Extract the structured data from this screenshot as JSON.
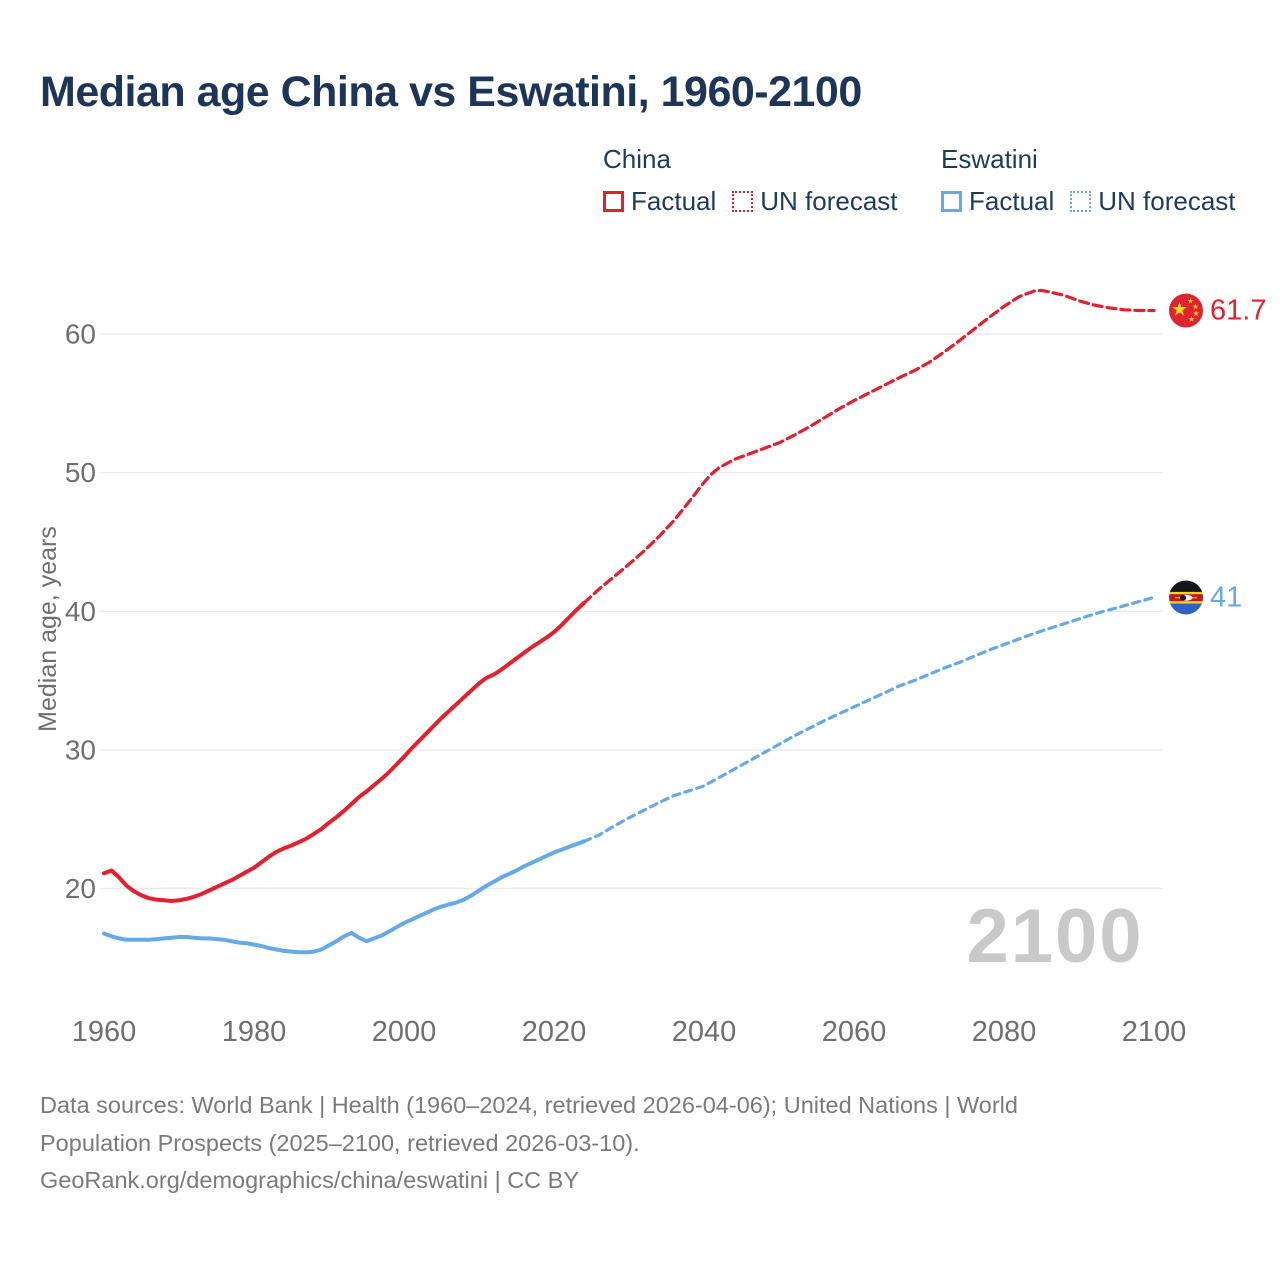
{
  "page": {
    "title": "Median age China vs Eswatini, 1960-2100"
  },
  "legend": {
    "groups": [
      {
        "label": "China",
        "color": "#e5202e",
        "items": [
          {
            "label": "Factual",
            "style": "solid"
          },
          {
            "label": "UN forecast",
            "style": "dotted"
          }
        ]
      },
      {
        "label": "Eswatini",
        "color": "#66a9e8",
        "items": [
          {
            "label": "Factual",
            "style": "solid"
          },
          {
            "label": "UN forecast",
            "style": "dotted"
          }
        ]
      }
    ]
  },
  "chart_data": {
    "type": "line",
    "title": "Median age China vs Eswatini, 1960-2100",
    "xlabel": "",
    "ylabel": "Median age, years",
    "x_ticks": [
      1960,
      1980,
      2000,
      2020,
      2040,
      2060,
      2080,
      2100
    ],
    "y_ticks": [
      20,
      30,
      40,
      50,
      60
    ],
    "xlim": [
      1960,
      2100
    ],
    "ylim": [
      15,
      64
    ],
    "grid": "horizontal",
    "legend_position": "top",
    "watermark": "2100",
    "series": [
      {
        "name": "China — Factual",
        "country": "China",
        "color": "#e5202e",
        "style": "solid",
        "points": [
          [
            1960,
            21.1
          ],
          [
            1961,
            21.3
          ],
          [
            1962,
            20.8
          ],
          [
            1963,
            20.2
          ],
          [
            1964,
            19.8
          ],
          [
            1965,
            19.5
          ],
          [
            1966,
            19.3
          ],
          [
            1967,
            19.2
          ],
          [
            1968,
            19.15
          ],
          [
            1969,
            19.1
          ],
          [
            1970,
            19.15
          ],
          [
            1971,
            19.25
          ],
          [
            1972,
            19.4
          ],
          [
            1973,
            19.6
          ],
          [
            1974,
            19.85
          ],
          [
            1975,
            20.1
          ],
          [
            1976,
            20.35
          ],
          [
            1977,
            20.6
          ],
          [
            1978,
            20.9
          ],
          [
            1979,
            21.2
          ],
          [
            1980,
            21.5
          ],
          [
            1981,
            21.9
          ],
          [
            1982,
            22.3
          ],
          [
            1983,
            22.65
          ],
          [
            1984,
            22.9
          ],
          [
            1985,
            23.1
          ],
          [
            1986,
            23.35
          ],
          [
            1987,
            23.6
          ],
          [
            1988,
            23.95
          ],
          [
            1989,
            24.3
          ],
          [
            1990,
            24.75
          ],
          [
            1991,
            25.15
          ],
          [
            1992,
            25.6
          ],
          [
            1993,
            26.1
          ],
          [
            1994,
            26.6
          ],
          [
            1995,
            27.0
          ],
          [
            1996,
            27.45
          ],
          [
            1997,
            27.9
          ],
          [
            1998,
            28.4
          ],
          [
            1999,
            28.95
          ],
          [
            2000,
            29.5
          ],
          [
            2001,
            30.1
          ],
          [
            2002,
            30.65
          ],
          [
            2003,
            31.2
          ],
          [
            2004,
            31.75
          ],
          [
            2005,
            32.3
          ],
          [
            2006,
            32.8
          ],
          [
            2007,
            33.3
          ],
          [
            2008,
            33.8
          ],
          [
            2009,
            34.3
          ],
          [
            2010,
            34.8
          ],
          [
            2011,
            35.2
          ],
          [
            2012,
            35.45
          ],
          [
            2013,
            35.8
          ],
          [
            2014,
            36.2
          ],
          [
            2015,
            36.6
          ],
          [
            2016,
            37.0
          ],
          [
            2017,
            37.4
          ],
          [
            2018,
            37.75
          ],
          [
            2019,
            38.1
          ],
          [
            2020,
            38.5
          ],
          [
            2021,
            39.0
          ],
          [
            2022,
            39.55
          ],
          [
            2023,
            40.1
          ],
          [
            2024,
            40.6
          ]
        ]
      },
      {
        "name": "China — UN forecast",
        "country": "China",
        "color": "#e5202e",
        "style": "dashed",
        "points": [
          [
            2024,
            40.6
          ],
          [
            2025,
            41.1
          ],
          [
            2026,
            41.6
          ],
          [
            2028,
            42.5
          ],
          [
            2030,
            43.4
          ],
          [
            2032,
            44.35
          ],
          [
            2034,
            45.4
          ],
          [
            2036,
            46.55
          ],
          [
            2038,
            47.9
          ],
          [
            2040,
            49.3
          ],
          [
            2041,
            49.9
          ],
          [
            2042,
            50.35
          ],
          [
            2044,
            50.95
          ],
          [
            2046,
            51.35
          ],
          [
            2048,
            51.75
          ],
          [
            2050,
            52.15
          ],
          [
            2052,
            52.7
          ],
          [
            2054,
            53.3
          ],
          [
            2056,
            53.95
          ],
          [
            2058,
            54.6
          ],
          [
            2060,
            55.2
          ],
          [
            2062,
            55.75
          ],
          [
            2064,
            56.3
          ],
          [
            2066,
            56.85
          ],
          [
            2068,
            57.35
          ],
          [
            2070,
            57.95
          ],
          [
            2072,
            58.7
          ],
          [
            2074,
            59.5
          ],
          [
            2076,
            60.35
          ],
          [
            2078,
            61.2
          ],
          [
            2080,
            62.0
          ],
          [
            2082,
            62.7
          ],
          [
            2084,
            63.1
          ],
          [
            2085,
            63.15
          ],
          [
            2086,
            63.05
          ],
          [
            2088,
            62.8
          ],
          [
            2090,
            62.4
          ],
          [
            2092,
            62.1
          ],
          [
            2094,
            61.9
          ],
          [
            2096,
            61.75
          ],
          [
            2098,
            61.7
          ],
          [
            2100,
            61.7
          ]
        ]
      },
      {
        "name": "Eswatini — Factual",
        "country": "Eswatini",
        "color": "#66a9e8",
        "style": "solid",
        "points": [
          [
            1960,
            16.75
          ],
          [
            1961,
            16.55
          ],
          [
            1962,
            16.4
          ],
          [
            1963,
            16.3
          ],
          [
            1964,
            16.3
          ],
          [
            1965,
            16.3
          ],
          [
            1966,
            16.3
          ],
          [
            1967,
            16.35
          ],
          [
            1968,
            16.4
          ],
          [
            1969,
            16.45
          ],
          [
            1970,
            16.5
          ],
          [
            1971,
            16.5
          ],
          [
            1972,
            16.45
          ],
          [
            1973,
            16.4
          ],
          [
            1974,
            16.4
          ],
          [
            1975,
            16.35
          ],
          [
            1976,
            16.3
          ],
          [
            1977,
            16.2
          ],
          [
            1978,
            16.1
          ],
          [
            1979,
            16.05
          ],
          [
            1980,
            15.95
          ],
          [
            1981,
            15.85
          ],
          [
            1982,
            15.7
          ],
          [
            1983,
            15.6
          ],
          [
            1984,
            15.5
          ],
          [
            1985,
            15.45
          ],
          [
            1986,
            15.4
          ],
          [
            1987,
            15.4
          ],
          [
            1988,
            15.45
          ],
          [
            1989,
            15.6
          ],
          [
            1990,
            15.9
          ],
          [
            1991,
            16.2
          ],
          [
            1992,
            16.55
          ],
          [
            1993,
            16.8
          ],
          [
            1994,
            16.45
          ],
          [
            1995,
            16.2
          ],
          [
            1996,
            16.4
          ],
          [
            1997,
            16.6
          ],
          [
            1998,
            16.9
          ],
          [
            1999,
            17.2
          ],
          [
            2000,
            17.5
          ],
          [
            2001,
            17.75
          ],
          [
            2002,
            18.0
          ],
          [
            2003,
            18.25
          ],
          [
            2004,
            18.5
          ],
          [
            2005,
            18.7
          ],
          [
            2006,
            18.85
          ],
          [
            2007,
            19.0
          ],
          [
            2008,
            19.2
          ],
          [
            2009,
            19.5
          ],
          [
            2010,
            19.85
          ],
          [
            2011,
            20.2
          ],
          [
            2012,
            20.5
          ],
          [
            2013,
            20.8
          ],
          [
            2014,
            21.05
          ],
          [
            2015,
            21.3
          ],
          [
            2016,
            21.6
          ],
          [
            2017,
            21.85
          ],
          [
            2018,
            22.1
          ],
          [
            2019,
            22.35
          ],
          [
            2020,
            22.6
          ],
          [
            2021,
            22.8
          ],
          [
            2022,
            23.0
          ],
          [
            2023,
            23.2
          ],
          [
            2024,
            23.4
          ]
        ]
      },
      {
        "name": "Eswatini — UN forecast",
        "country": "Eswatini",
        "color": "#66a9e8",
        "style": "dashed",
        "points": [
          [
            2024,
            23.4
          ],
          [
            2026,
            23.85
          ],
          [
            2028,
            24.5
          ],
          [
            2030,
            25.1
          ],
          [
            2032,
            25.65
          ],
          [
            2034,
            26.2
          ],
          [
            2036,
            26.7
          ],
          [
            2038,
            27.05
          ],
          [
            2040,
            27.4
          ],
          [
            2042,
            28.0
          ],
          [
            2044,
            28.6
          ],
          [
            2046,
            29.2
          ],
          [
            2048,
            29.8
          ],
          [
            2050,
            30.4
          ],
          [
            2052,
            31.0
          ],
          [
            2054,
            31.55
          ],
          [
            2056,
            32.1
          ],
          [
            2058,
            32.6
          ],
          [
            2060,
            33.1
          ],
          [
            2062,
            33.6
          ],
          [
            2064,
            34.1
          ],
          [
            2066,
            34.6
          ],
          [
            2068,
            35.0
          ],
          [
            2070,
            35.45
          ],
          [
            2072,
            35.9
          ],
          [
            2074,
            36.3
          ],
          [
            2076,
            36.75
          ],
          [
            2078,
            37.2
          ],
          [
            2080,
            37.6
          ],
          [
            2082,
            38.0
          ],
          [
            2084,
            38.4
          ],
          [
            2086,
            38.75
          ],
          [
            2088,
            39.1
          ],
          [
            2090,
            39.45
          ],
          [
            2092,
            39.8
          ],
          [
            2094,
            40.1
          ],
          [
            2096,
            40.4
          ],
          [
            2098,
            40.7
          ],
          [
            2100,
            41.0
          ]
        ]
      }
    ],
    "end_labels": [
      {
        "country": "China",
        "text": "61.7",
        "value": 61.7,
        "color": "#e5202e"
      },
      {
        "country": "Eswatini",
        "text": "41",
        "value": 41.0,
        "color": "#66a9e8"
      }
    ],
    "colors": {
      "china": "#e5202e",
      "eswatini": "#66a9e8",
      "grid": "#ebebeb",
      "axis_text": "#6f6f6f",
      "title_text": "#1d3557",
      "watermark": "#c9c9c9"
    }
  },
  "footer": {
    "lines": [
      "Data sources: World Bank | Health (1960–2024, retrieved 2026-04-06); United Nations | World",
      "Population Prospects (2025–2100, retrieved 2026-03-10).",
      "GeoRank.org/demographics/china/eswatini | CC BY"
    ]
  }
}
